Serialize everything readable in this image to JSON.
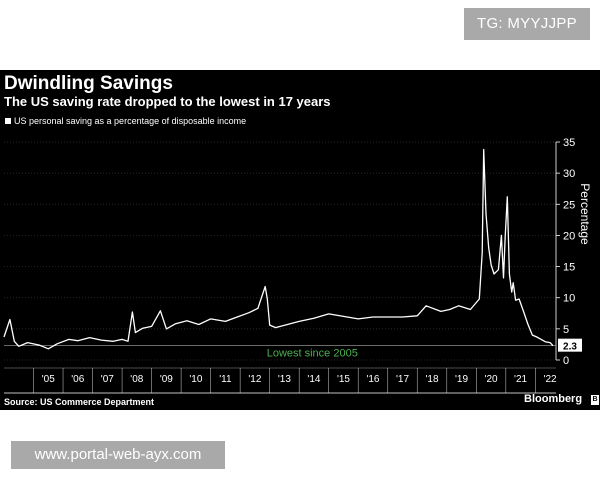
{
  "watermark_top": "TG: MYYJJPP",
  "watermark_bottom": "www.portal-web-ayx.com",
  "colors": {
    "background": "#000000",
    "line": "#ffffff",
    "grid": "#333333",
    "annotation": "#4caf50"
  },
  "chart_data": {
    "type": "line",
    "title": "Dwindling Savings",
    "subtitle": "The US saving rate dropped to the lowest in 17 years",
    "legend": [
      "US personal saving as a percentage of disposable income"
    ],
    "ylabel": "Percentage",
    "xlabel": "",
    "ylim": [
      0,
      35
    ],
    "yticks": [
      0,
      5,
      10,
      15,
      20,
      25,
      30,
      35
    ],
    "xlim": [
      2004,
      2022.7
    ],
    "xticks": [
      "'05",
      "'06",
      "'07",
      "'08",
      "'09",
      "'10",
      "'11",
      "'12",
      "'13",
      "'14",
      "'15",
      "'16",
      "'17",
      "'18",
      "'19",
      "'20",
      "'21",
      "'22"
    ],
    "latest_value_label": "2.3",
    "reference_line": {
      "value": 2.3,
      "label": "Lowest since 2005"
    },
    "source": "Source: US Commerce Department",
    "brand": "Bloomberg",
    "series": [
      {
        "name": "US personal saving as a percentage of disposable income",
        "x": [
          2004.0,
          2004.2,
          2004.35,
          2004.5,
          2004.8,
          2005.2,
          2005.5,
          2005.8,
          2006.2,
          2006.5,
          2006.9,
          2007.3,
          2007.7,
          2008.0,
          2008.2,
          2008.35,
          2008.45,
          2008.7,
          2009.0,
          2009.3,
          2009.5,
          2009.8,
          2010.2,
          2010.6,
          2011.0,
          2011.5,
          2011.9,
          2012.3,
          2012.6,
          2012.85,
          2012.92,
          2013.0,
          2013.2,
          2013.6,
          2014.0,
          2014.5,
          2015.0,
          2015.5,
          2016.0,
          2016.5,
          2017.0,
          2017.5,
          2018.0,
          2018.3,
          2018.8,
          2019.1,
          2019.4,
          2019.8,
          2020.1,
          2020.2,
          2020.25,
          2020.33,
          2020.42,
          2020.5,
          2020.6,
          2020.75,
          2020.85,
          2020.92,
          2020.98,
          2021.05,
          2021.12,
          2021.2,
          2021.25,
          2021.33,
          2021.45,
          2021.6,
          2021.75,
          2021.9,
          2022.05,
          2022.2,
          2022.35,
          2022.5,
          2022.6
        ],
        "values": [
          3.7,
          6.5,
          3.0,
          2.2,
          2.8,
          2.4,
          1.8,
          2.6,
          3.3,
          3.1,
          3.6,
          3.2,
          3.0,
          3.3,
          3.0,
          7.7,
          4.4,
          5.1,
          5.4,
          7.9,
          5.0,
          5.8,
          6.3,
          5.7,
          6.6,
          6.2,
          6.9,
          7.6,
          8.3,
          11.8,
          9.8,
          5.6,
          5.2,
          5.7,
          6.2,
          6.7,
          7.4,
          7.0,
          6.6,
          6.9,
          6.9,
          6.9,
          7.1,
          8.7,
          7.8,
          8.1,
          8.7,
          8.1,
          9.8,
          17.2,
          33.8,
          23.5,
          18.0,
          15.3,
          13.8,
          14.5,
          20.0,
          13.2,
          19.8,
          26.2,
          13.8,
          10.9,
          12.4,
          9.6,
          9.8,
          7.8,
          5.7,
          4.0,
          3.7,
          3.3,
          2.9,
          2.8,
          2.3
        ]
      }
    ]
  }
}
